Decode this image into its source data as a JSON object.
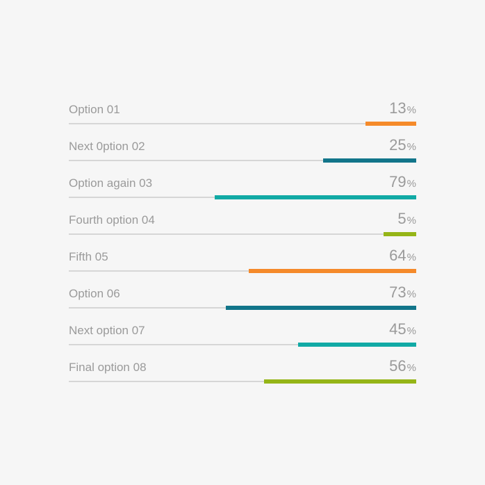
{
  "items": [
    {
      "label": "Option 01",
      "value": "13",
      "unit": "%",
      "fraction": 0.146,
      "color": "#f58a2a"
    },
    {
      "label": "Next 0ption 02",
      "value": "25",
      "unit": "%",
      "fraction": 0.268,
      "color": "#12758a"
    },
    {
      "label": "Option again 03",
      "value": "79",
      "unit": "%",
      "fraction": 0.58,
      "color": "#11aaa5"
    },
    {
      "label": "Fourth option 04",
      "value": "5",
      "unit": "%",
      "fraction": 0.094,
      "color": "#95b517"
    },
    {
      "label": "Fifth 05",
      "value": "64",
      "unit": "%",
      "fraction": 0.482,
      "color": "#f58a2a"
    },
    {
      "label": "Option 06",
      "value": "73",
      "unit": "%",
      "fraction": 0.548,
      "color": "#12758a"
    },
    {
      "label": "Next option 07",
      "value": "45",
      "unit": "%",
      "fraction": 0.34,
      "color": "#11aaa5"
    },
    {
      "label": "Final option 08",
      "value": "56",
      "unit": "%",
      "fraction": 0.438,
      "color": "#95b517"
    }
  ]
}
